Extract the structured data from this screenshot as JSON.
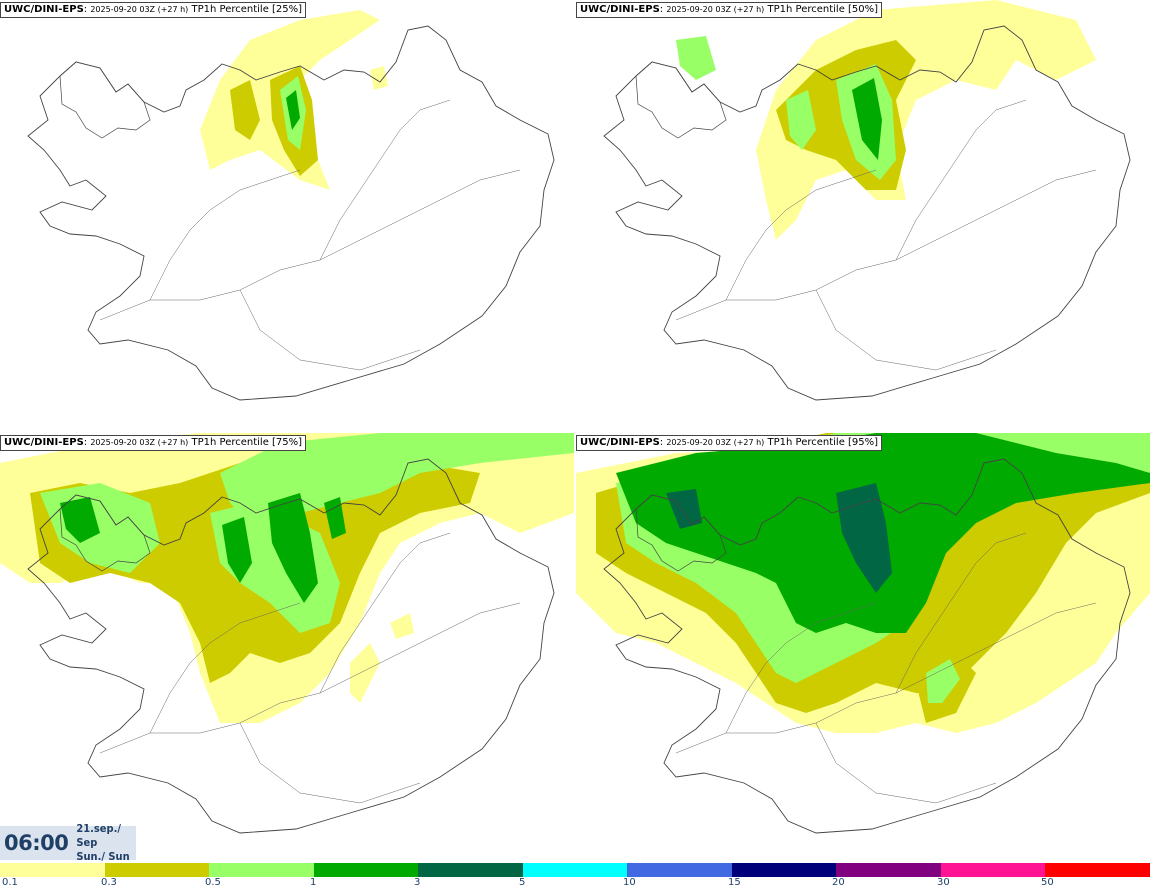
{
  "panels": [
    {
      "model": "UWC/DINI-EPS",
      "run": "2025-09-20 03Z (+27 h)",
      "field": "TP1h Percentile [25%]",
      "percentile": 25
    },
    {
      "model": "UWC/DINI-EPS",
      "run": "2025-09-20 03Z (+27 h)",
      "field": "TP1h Percentile [50%]",
      "percentile": 50
    },
    {
      "model": "UWC/DINI-EPS",
      "run": "2025-09-20 03Z (+27 h)",
      "field": "TP1h Percentile [75%]",
      "percentile": 75
    },
    {
      "model": "UWC/DINI-EPS",
      "run": "2025-09-20 03Z (+27 h)",
      "field": "TP1h Percentile [95%]",
      "percentile": 95
    }
  ],
  "valid_time": {
    "hour": "06:00",
    "date": "21.sep./ Sep",
    "day": "Sun./ Sun"
  },
  "colorbar": {
    "colors": [
      "#ffff99",
      "#cccc00",
      "#99ff66",
      "#00aa00",
      "#006644",
      "#00ffff",
      "#4169e1",
      "#00007a",
      "#800080",
      "#ff1493",
      "#ff0000"
    ],
    "labels": [
      "0.1",
      "0.3",
      "0.5",
      "1",
      "3",
      "5",
      "10",
      "15",
      "20",
      "30",
      "50"
    ]
  },
  "map_colors": {
    "light_yellow": "#ffff99",
    "olive": "#cccc00",
    "light_green": "#99ff66",
    "green": "#00aa00",
    "dark_green": "#006644",
    "outline": "#444444"
  }
}
